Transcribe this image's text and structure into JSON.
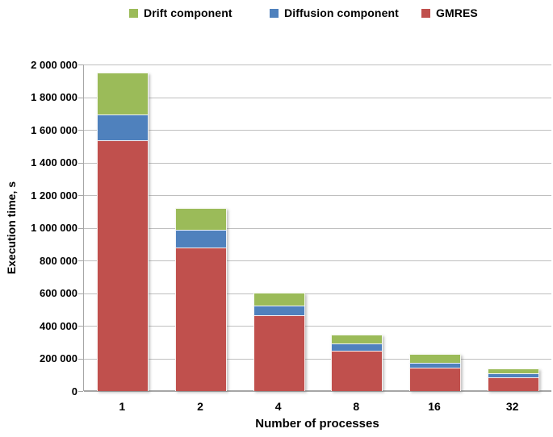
{
  "figure": {
    "background": "#ffffff"
  },
  "legend": {
    "items": [
      {
        "label": "Drift component",
        "color": "#9bbb59"
      },
      {
        "label": "Diffusion component",
        "color": "#4f81bd"
      },
      {
        "label": "GMRES",
        "color": "#c0504d"
      }
    ]
  },
  "axes": {
    "y_title": "Execution time, s",
    "x_title": "Number of processes"
  },
  "chart_data": {
    "type": "bar",
    "stacked": true,
    "title": "",
    "xlabel": "Number of processes",
    "ylabel": "Execution time, s",
    "categories": [
      "1",
      "2",
      "4",
      "8",
      "16",
      "32"
    ],
    "series": [
      {
        "name": "GMRES",
        "color": "#c0504d",
        "values": [
          1535000,
          880000,
          465000,
          248000,
          143000,
          85000
        ]
      },
      {
        "name": "Diffusion component",
        "color": "#4f81bd",
        "values": [
          160000,
          108000,
          60000,
          45000,
          32000,
          23000
        ]
      },
      {
        "name": "Drift component",
        "color": "#9bbb59",
        "values": [
          255000,
          132000,
          80000,
          52000,
          50000,
          30000
        ]
      }
    ],
    "stack_totals": [
      1950000,
      1120000,
      605000,
      345000,
      225000,
      138000
    ],
    "ylim": [
      0,
      2000000
    ],
    "yticks": [
      0,
      200000,
      400000,
      600000,
      800000,
      1000000,
      1200000,
      1400000,
      1600000,
      1800000,
      2000000
    ],
    "ytick_labels": [
      "0",
      "200 000",
      "400 000",
      "600 000",
      "800 000",
      "1 000 000",
      "1 200 000",
      "1 400 000",
      "1 600 000",
      "1 800 000",
      "2 000 000"
    ],
    "grid": true,
    "gridline_color": "#bfbfbf",
    "axis_color": "#a6a6a6",
    "legend_position": "top"
  }
}
